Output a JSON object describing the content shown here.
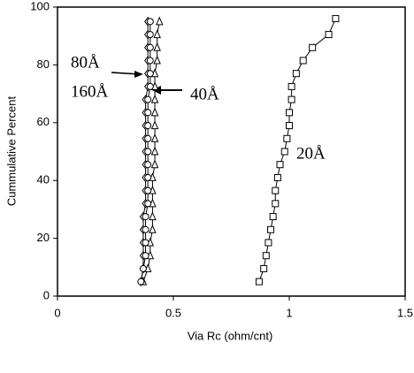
{
  "chart_data": {
    "type": "line",
    "xlabel": "Via Rc (ohm/cnt)",
    "ylabel": "Cummulative Percent",
    "xlim": [
      0,
      1.5
    ],
    "xticks": [
      0,
      0.5,
      1,
      1.5
    ],
    "ylim": [
      0,
      100
    ],
    "yticks": [
      0,
      20,
      40,
      60,
      80,
      100
    ],
    "series": [
      {
        "name": "20Å",
        "color": "#000000",
        "marker": "square",
        "x": [
          0.87,
          0.89,
          0.9,
          0.91,
          0.92,
          0.93,
          0.94,
          0.94,
          0.95,
          0.96,
          0.98,
          0.99,
          1.0,
          1.0,
          1.01,
          1.01,
          1.03,
          1.06,
          1.1,
          1.17,
          1.2
        ],
        "values": [
          5,
          9.5,
          14,
          18.5,
          23,
          27.5,
          32,
          36.5,
          41,
          45.5,
          50,
          54.5,
          59,
          63.5,
          68,
          72.5,
          77,
          81.5,
          86,
          90.5,
          96
        ]
      },
      {
        "name": "40Å",
        "color": "#000000",
        "marker": "triangle",
        "x": [
          0.37,
          0.39,
          0.4,
          0.4,
          0.41,
          0.41,
          0.41,
          0.41,
          0.41,
          0.42,
          0.42,
          0.42,
          0.42,
          0.42,
          0.42,
          0.42,
          0.42,
          0.43,
          0.43,
          0.43,
          0.44
        ],
        "values": [
          5,
          9.5,
          14,
          18.5,
          23,
          27.5,
          32,
          36.5,
          41,
          45.5,
          50,
          54.5,
          59,
          63.5,
          68,
          72.5,
          77,
          81.5,
          86,
          90.5,
          95
        ]
      },
      {
        "name": "80Å",
        "color": "#000000",
        "marker": "diamond",
        "x": [
          0.36,
          0.37,
          0.37,
          0.37,
          0.37,
          0.37,
          0.38,
          0.38,
          0.38,
          0.38,
          0.38,
          0.38,
          0.38,
          0.38,
          0.38,
          0.39,
          0.39,
          0.39,
          0.39,
          0.39,
          0.39
        ],
        "values": [
          5,
          9.5,
          14,
          18.5,
          23,
          27.5,
          32,
          36.5,
          41,
          45.5,
          50,
          54.5,
          59,
          63.5,
          68,
          72.5,
          77,
          81.5,
          86,
          90.5,
          95
        ]
      },
      {
        "name": "160Å",
        "color": "#000000",
        "marker": "circle",
        "x": [
          0.36,
          0.37,
          0.38,
          0.38,
          0.38,
          0.38,
          0.39,
          0.39,
          0.39,
          0.39,
          0.39,
          0.39,
          0.39,
          0.39,
          0.39,
          0.4,
          0.4,
          0.4,
          0.4,
          0.4,
          0.4
        ],
        "values": [
          5,
          9.5,
          14,
          18.5,
          23,
          27.5,
          32,
          36.5,
          41,
          45.5,
          50,
          54.5,
          59,
          63.5,
          68,
          72.5,
          77,
          81.5,
          86,
          90.5,
          95
        ]
      }
    ]
  }
}
